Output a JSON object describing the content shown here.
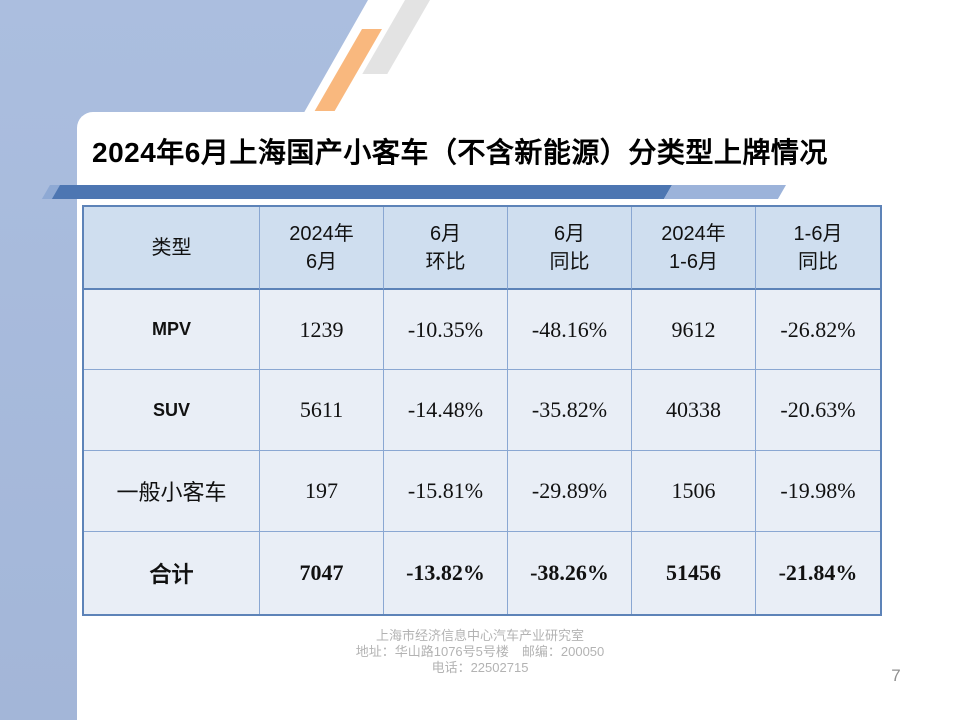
{
  "slide": {
    "title": "2024年6月上海国产小客车（不含新能源）分类型上牌情况",
    "page_number": "7",
    "footer_line1": "上海市经济信息中心汽车产业研究室",
    "footer_line2": "地址：华山路1076号5号楼　邮编：200050",
    "footer_line3": "电话：22502715"
  },
  "table": {
    "headers": [
      "类型",
      "2024年\n6月",
      "6月\n环比",
      "6月\n同比",
      "2024年\n1-6月",
      "1-6月\n同比"
    ],
    "rows": [
      {
        "label": "MPV",
        "values": [
          "1239",
          "-10.35%",
          "-48.16%",
          "9612",
          "-26.82%"
        ]
      },
      {
        "label": "SUV",
        "values": [
          "5611",
          "-14.48%",
          "-35.82%",
          "40338",
          "-20.63%"
        ]
      },
      {
        "label": "一般小客车",
        "values": [
          "197",
          "-15.81%",
          "-29.89%",
          "1506",
          "-19.98%"
        ]
      },
      {
        "label": "合计",
        "values": [
          "7047",
          "-13.82%",
          "-38.26%",
          "51456",
          "-21.84%"
        ]
      }
    ]
  },
  "chart_data": {
    "type": "table",
    "title": "2024年6月上海国产小客车（不含新能源）分类型上牌情况",
    "columns": [
      "类型",
      "2024年6月",
      "6月环比",
      "6月同比",
      "2024年1-6月",
      "1-6月同比"
    ],
    "rows": [
      [
        "MPV",
        1239,
        "-10.35%",
        "-48.16%",
        9612,
        "-26.82%"
      ],
      [
        "SUV",
        5611,
        "-14.48%",
        "-35.82%",
        40338,
        "-20.63%"
      ],
      [
        "一般小客车",
        197,
        "-15.81%",
        "-29.89%",
        1506,
        "-19.98%"
      ],
      [
        "合计",
        7047,
        "-13.82%",
        "-38.26%",
        51456,
        "-21.84%"
      ]
    ]
  },
  "colors": {
    "background_blue": "#a8bbdc",
    "accent_band_dark": "#4d76b2",
    "accent_band_light": "#9cb3da",
    "orange_stripe": "#f9b87e",
    "gray_stripe": "#e3e3e3",
    "table_header_bg": "#cfdeef",
    "table_row_bg": "#e9eef6",
    "table_border": "#8aa7d2",
    "footer_text": "#b3b3b3"
  }
}
